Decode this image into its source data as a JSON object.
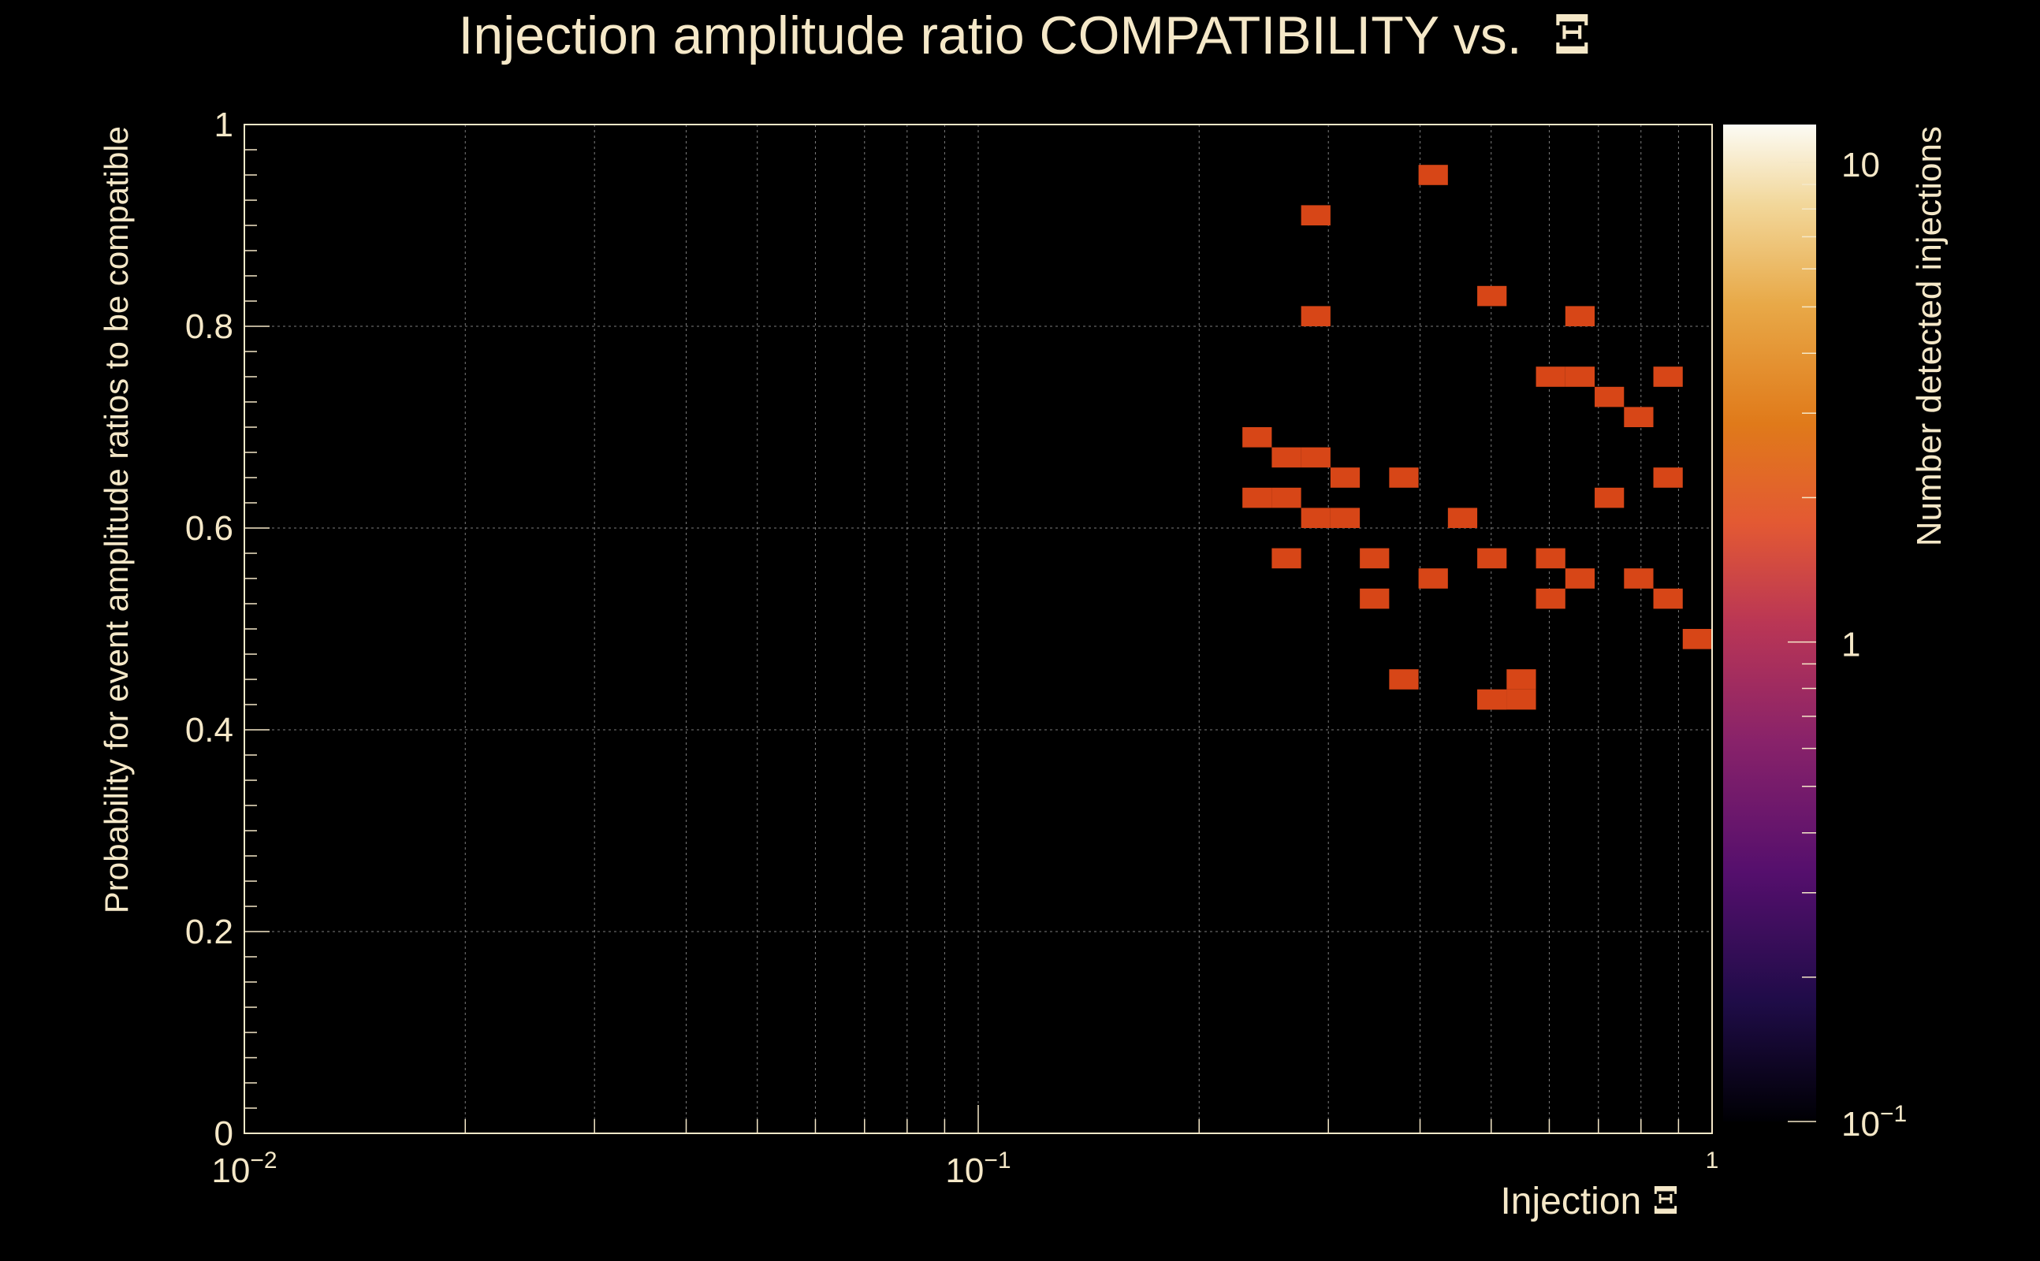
{
  "chart_data": {
    "type": "heatmap",
    "title": "Injection amplitude ratio COMPATIBILITY vs.",
    "title_symbol": "Ξ",
    "xlabel": "Injection",
    "xlabel_symbol": "Ξ",
    "ylabel": "Probability for event amplitude ratios to be compatible",
    "zlabel": "Number detected injections",
    "xscale": "log",
    "xlim": [
      0.01,
      1
    ],
    "ylim": [
      0,
      1
    ],
    "zscale": "log",
    "zlim": [
      0.1,
      12
    ],
    "x_ticks": [
      {
        "base": "10",
        "exp": "−2"
      },
      {
        "base": "10",
        "exp": "−1"
      },
      {
        "base": "",
        "exp": "1"
      }
    ],
    "y_ticks": [
      "0",
      "0.2",
      "0.4",
      "0.6",
      "0.8",
      "1"
    ],
    "z_ticks": [
      {
        "base": "10",
        "exp": "−1"
      },
      {
        "base": "1",
        "exp": ""
      },
      {
        "base": "10",
        "exp": ""
      }
    ],
    "grid": true,
    "bins": {
      "x_bins": 50,
      "y_bins": 50,
      "y_width": 0.02
    },
    "cells": [
      [
        41,
        48,
        1
      ],
      [
        37,
        46,
        1
      ],
      [
        43,
        42,
        1
      ],
      [
        37,
        41,
        1
      ],
      [
        46,
        41,
        1
      ],
      [
        45,
        38,
        1
      ],
      [
        46,
        38,
        1
      ],
      [
        49,
        38,
        1
      ],
      [
        47,
        37,
        1
      ],
      [
        48,
        36,
        1
      ],
      [
        35,
        35,
        1
      ],
      [
        36,
        34,
        1
      ],
      [
        37,
        34,
        1
      ],
      [
        40,
        33,
        1
      ],
      [
        38,
        33,
        1
      ],
      [
        49,
        33,
        1
      ],
      [
        35,
        32,
        1
      ],
      [
        36,
        32,
        1
      ],
      [
        47,
        32,
        1
      ],
      [
        38,
        31,
        1
      ],
      [
        37,
        31,
        1
      ],
      [
        42,
        31,
        1
      ],
      [
        39,
        29,
        1
      ],
      [
        36,
        29,
        1
      ],
      [
        45,
        29,
        1
      ],
      [
        43,
        29,
        1
      ],
      [
        41,
        28,
        1
      ],
      [
        46,
        28,
        1
      ],
      [
        48,
        28,
        1
      ],
      [
        45,
        27,
        1
      ],
      [
        39,
        27,
        1
      ],
      [
        49,
        27,
        1
      ],
      [
        50,
        25,
        1
      ],
      [
        44,
        23,
        1
      ],
      [
        40,
        23,
        1
      ],
      [
        43,
        22,
        1
      ],
      [
        44,
        22,
        1
      ],
      [
        43,
        22,
        1
      ]
    ]
  }
}
